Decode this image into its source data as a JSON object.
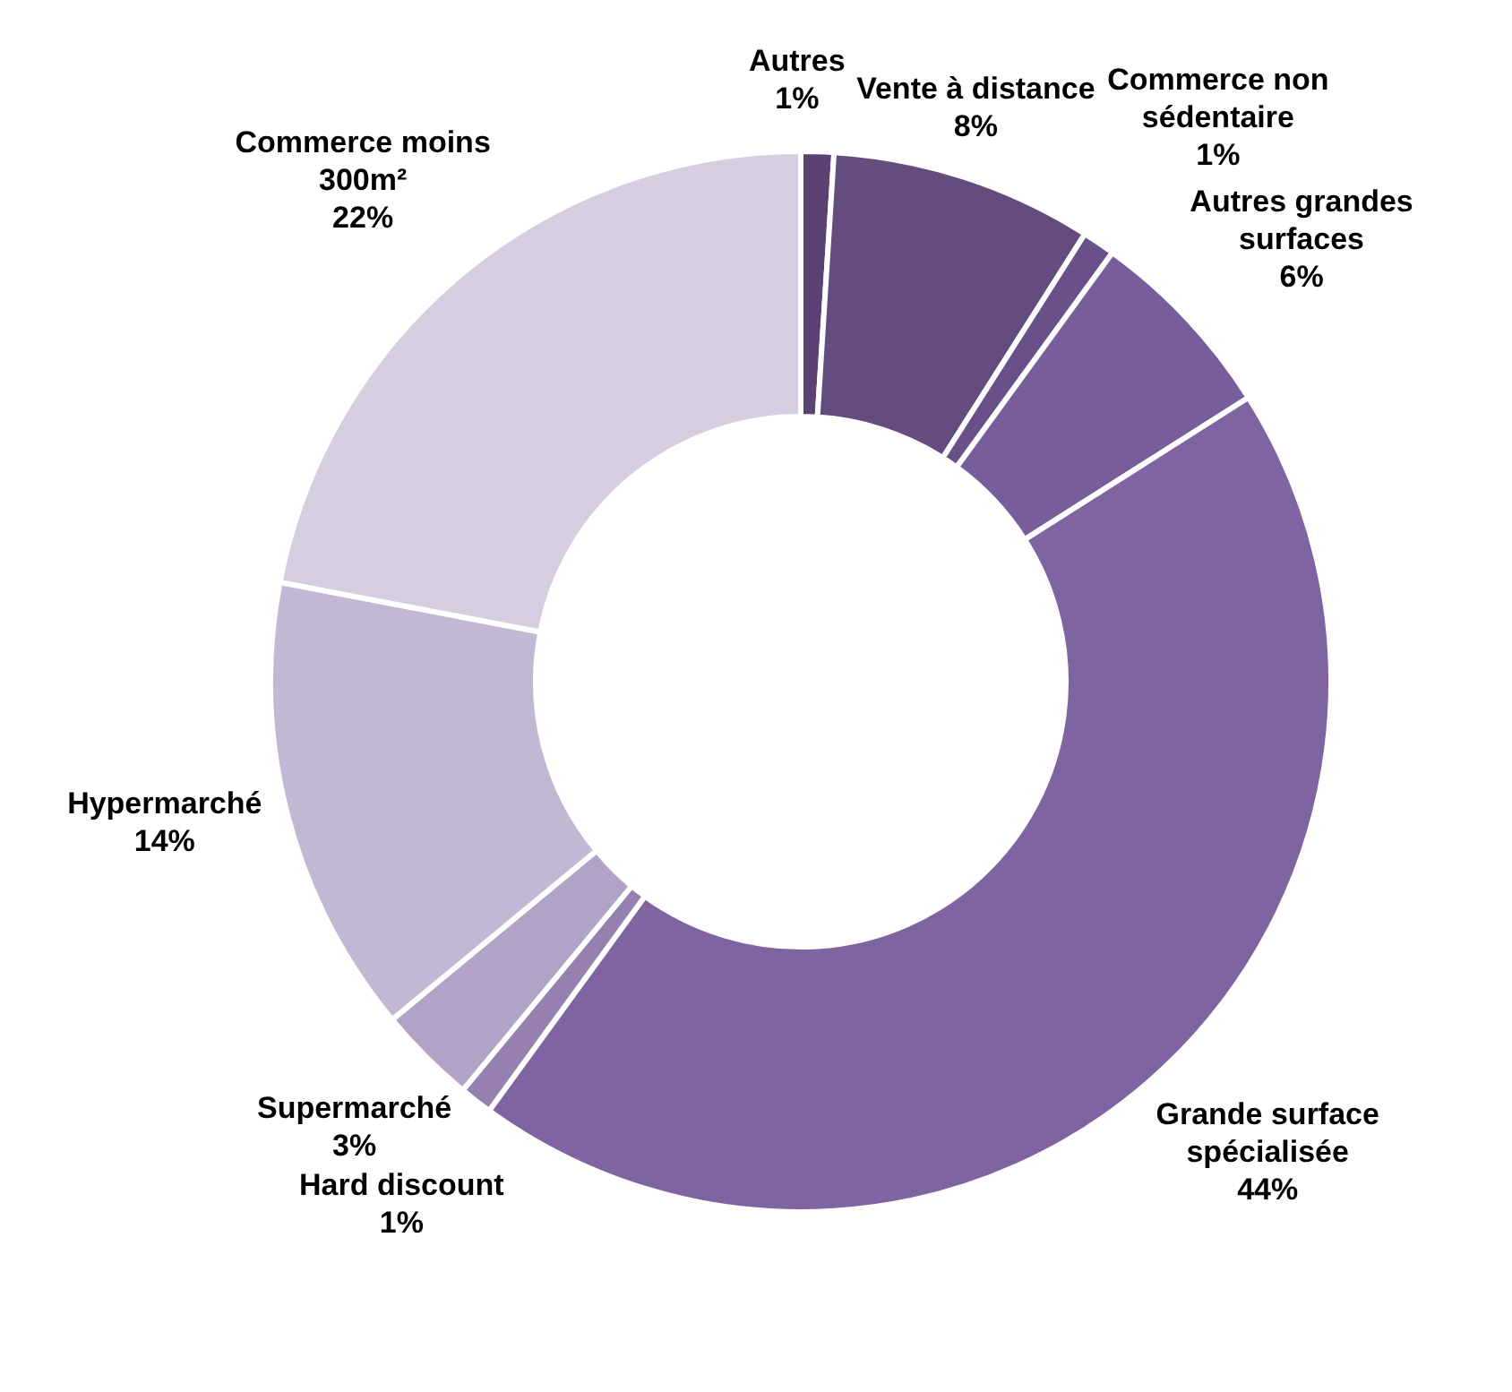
{
  "chart_data": {
    "type": "donut",
    "categories": [
      "Autres",
      "Vente à distance",
      "Commerce non sédentaire",
      "Autres grandes surfaces",
      "Grande surface spécialisée",
      "Hard discount",
      "Supermarché",
      "Hypermarché",
      "Commerce moins 300m²"
    ],
    "values": [
      1,
      8,
      1,
      6,
      44,
      1,
      3,
      14,
      22
    ],
    "colors": [
      "#5b4275",
      "#644c7f",
      "#6a5089",
      "#775d99",
      "#8064a2",
      "#9580b0",
      "#b1a3c6",
      "#c3b8d3",
      "#d5cee0"
    ],
    "value_labels": [
      "1%",
      "8%",
      "1%",
      "6%",
      "44%",
      "1%",
      "3%",
      "14%",
      "22%"
    ],
    "legend": false
  }
}
